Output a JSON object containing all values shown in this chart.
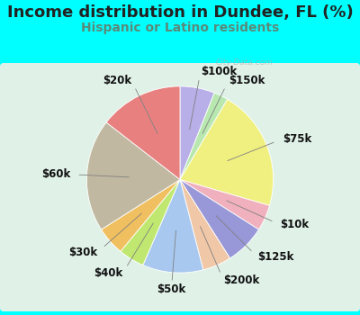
{
  "title": "Income distribution in Dundee, FL (%)",
  "subtitle": "Hispanic or Latino residents",
  "watermark": "City-Data.com",
  "background_outer": "#00FFFF",
  "background_inner_gradient_top": "#e8f5ee",
  "background_inner_gradient_bottom": "#d0ece0",
  "segments": [
    {
      "label": "$100k",
      "value": 6.0,
      "color": "#b8aee8"
    },
    {
      "label": "$150k",
      "value": 2.5,
      "color": "#b8e8b0"
    },
    {
      "label": "$75k",
      "value": 21.0,
      "color": "#f0f080"
    },
    {
      "label": "$10k",
      "value": 4.5,
      "color": "#f0b0be"
    },
    {
      "label": "$125k",
      "value": 7.0,
      "color": "#9898d8"
    },
    {
      "label": "$200k",
      "value": 5.0,
      "color": "#f0c8a8"
    },
    {
      "label": "$50k",
      "value": 10.5,
      "color": "#a8c8f0"
    },
    {
      "label": "$40k",
      "value": 4.5,
      "color": "#c0e870"
    },
    {
      "label": "$30k",
      "value": 5.0,
      "color": "#f0c060"
    },
    {
      "label": "$60k",
      "value": 19.5,
      "color": "#c0b8a0"
    },
    {
      "label": "$20k",
      "value": 14.5,
      "color": "#e88080"
    }
  ],
  "title_fontsize": 13,
  "subtitle_fontsize": 10,
  "label_fontsize": 8.5
}
